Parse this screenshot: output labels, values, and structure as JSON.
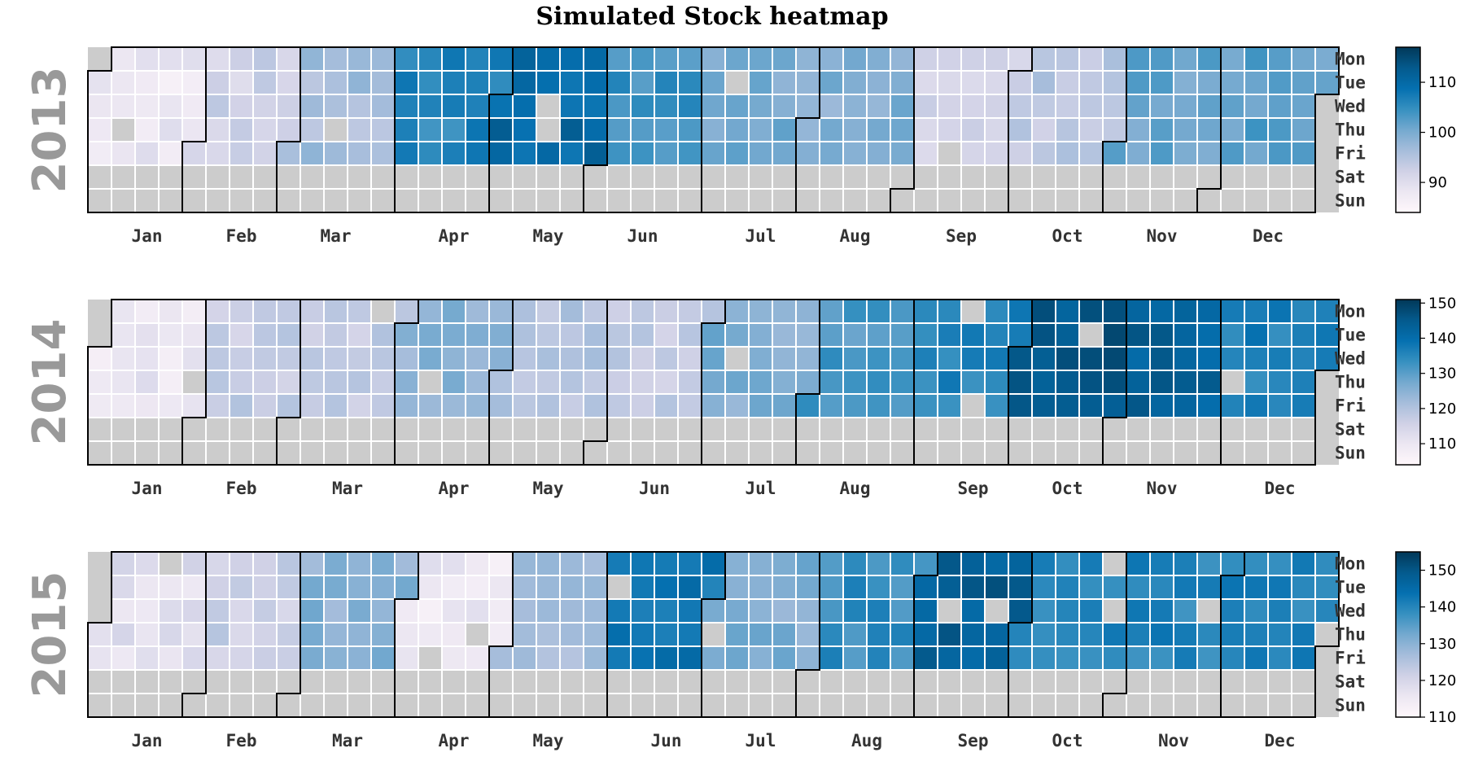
{
  "chart_data": {
    "type": "heatmap",
    "title": "Simulated Stock heatmap",
    "month_labels": [
      "Jan",
      "Feb",
      "Mar",
      "Apr",
      "May",
      "Jun",
      "Jul",
      "Aug",
      "Sep",
      "Oct",
      "Nov",
      "Dec"
    ],
    "day_labels": [
      "Mon",
      "Tue",
      "Wed",
      "Thu",
      "Fri",
      "Sat",
      "Sun"
    ],
    "missing_color": "#cccccc",
    "colormap": [
      "#fff7fb",
      "#ece7f2",
      "#d0d1e6",
      "#a6bddb",
      "#74a9cf",
      "#3690c0",
      "#0570b0",
      "#045a8d",
      "#023858"
    ],
    "panels": [
      {
        "year": "2013",
        "colorbar": {
          "min": 84,
          "max": 117,
          "ticks": [
            90,
            100,
            110
          ]
        },
        "monthly_mean": [
          88,
          92,
          96,
          106,
          110,
          104,
          100,
          99,
          92,
          94,
          101,
          102
        ]
      },
      {
        "year": "2014",
        "colorbar": {
          "min": 104,
          "max": 151,
          "ticks": [
            110,
            120,
            130,
            140,
            150
          ]
        },
        "monthly_mean": [
          110,
          117,
          117,
          124,
          120,
          117,
          126,
          131,
          135,
          145,
          143,
          136
        ]
      },
      {
        "year": "2015",
        "colorbar": {
          "min": 110,
          "max": 155,
          "ticks": [
            110,
            120,
            130,
            140,
            150
          ]
        },
        "monthly_mean": [
          118,
          122,
          130,
          115,
          126,
          143,
          131,
          138,
          148,
          140,
          140,
          140
        ]
      }
    ]
  }
}
